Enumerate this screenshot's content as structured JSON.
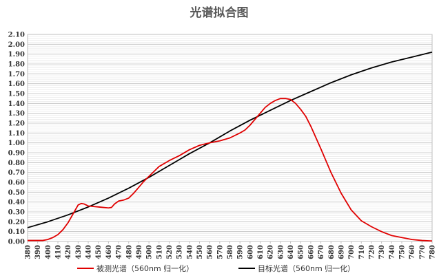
{
  "chart_data": {
    "type": "line",
    "title": "光谱拟合图",
    "xlabel": "",
    "ylabel": "",
    "xlim": [
      380,
      780
    ],
    "ylim": [
      0,
      2.1
    ],
    "grid": true,
    "legend_position": "bottom",
    "x_ticks": [
      "380",
      "390",
      "400",
      "410",
      "420",
      "430",
      "440",
      "450",
      "460",
      "470",
      "480",
      "490",
      "500",
      "510",
      "520",
      "530",
      "540",
      "550",
      "560",
      "570",
      "580",
      "590",
      "600",
      "610",
      "620",
      "630",
      "640",
      "650",
      "660",
      "670",
      "680",
      "690",
      "700",
      "710",
      "720",
      "730",
      "740",
      "750",
      "760",
      "770",
      "780"
    ],
    "y_ticks": [
      "0.00",
      "0.10",
      "0.20",
      "0.30",
      "0.40",
      "0.50",
      "0.60",
      "0.70",
      "0.80",
      "0.90",
      "1.00",
      "1.10",
      "1.20",
      "1.30",
      "1.40",
      "1.50",
      "1.60",
      "1.70",
      "1.80",
      "1.90",
      "2.00",
      "2.10"
    ],
    "series": [
      {
        "name": "被测光谱（560nm 归一化）",
        "color": "#e00000",
        "x": [
          380,
          390,
          395,
          400,
          405,
          410,
          415,
          420,
          425,
          430,
          433,
          436,
          440,
          445,
          450,
          455,
          460,
          463,
          466,
          470,
          475,
          480,
          485,
          490,
          495,
          500,
          505,
          510,
          520,
          530,
          540,
          550,
          560,
          570,
          580,
          590,
          595,
          600,
          605,
          610,
          615,
          620,
          625,
          630,
          635,
          640,
          645,
          650,
          655,
          660,
          670,
          680,
          690,
          700,
          710,
          720,
          730,
          740,
          750,
          760,
          770,
          780
        ],
        "y": [
          0.01,
          0.01,
          0.01,
          0.02,
          0.04,
          0.07,
          0.12,
          0.19,
          0.28,
          0.37,
          0.385,
          0.38,
          0.36,
          0.355,
          0.35,
          0.345,
          0.34,
          0.345,
          0.38,
          0.41,
          0.42,
          0.44,
          0.49,
          0.55,
          0.61,
          0.66,
          0.71,
          0.76,
          0.82,
          0.87,
          0.93,
          0.975,
          1.0,
          1.02,
          1.05,
          1.1,
          1.13,
          1.18,
          1.24,
          1.3,
          1.36,
          1.4,
          1.43,
          1.45,
          1.45,
          1.44,
          1.4,
          1.34,
          1.27,
          1.17,
          0.94,
          0.7,
          0.49,
          0.32,
          0.21,
          0.15,
          0.1,
          0.06,
          0.04,
          0.02,
          0.01,
          0.005
        ]
      },
      {
        "name": "目标光谱（560nm 归一化）",
        "color": "#000000",
        "x": [
          380,
          400,
          420,
          440,
          460,
          480,
          500,
          520,
          540,
          560,
          580,
          600,
          620,
          640,
          660,
          680,
          700,
          720,
          740,
          760,
          780
        ],
        "y": [
          0.14,
          0.2,
          0.27,
          0.35,
          0.44,
          0.54,
          0.65,
          0.77,
          0.89,
          1.0,
          1.12,
          1.23,
          1.33,
          1.43,
          1.52,
          1.61,
          1.69,
          1.76,
          1.82,
          1.87,
          1.92
        ]
      }
    ]
  }
}
